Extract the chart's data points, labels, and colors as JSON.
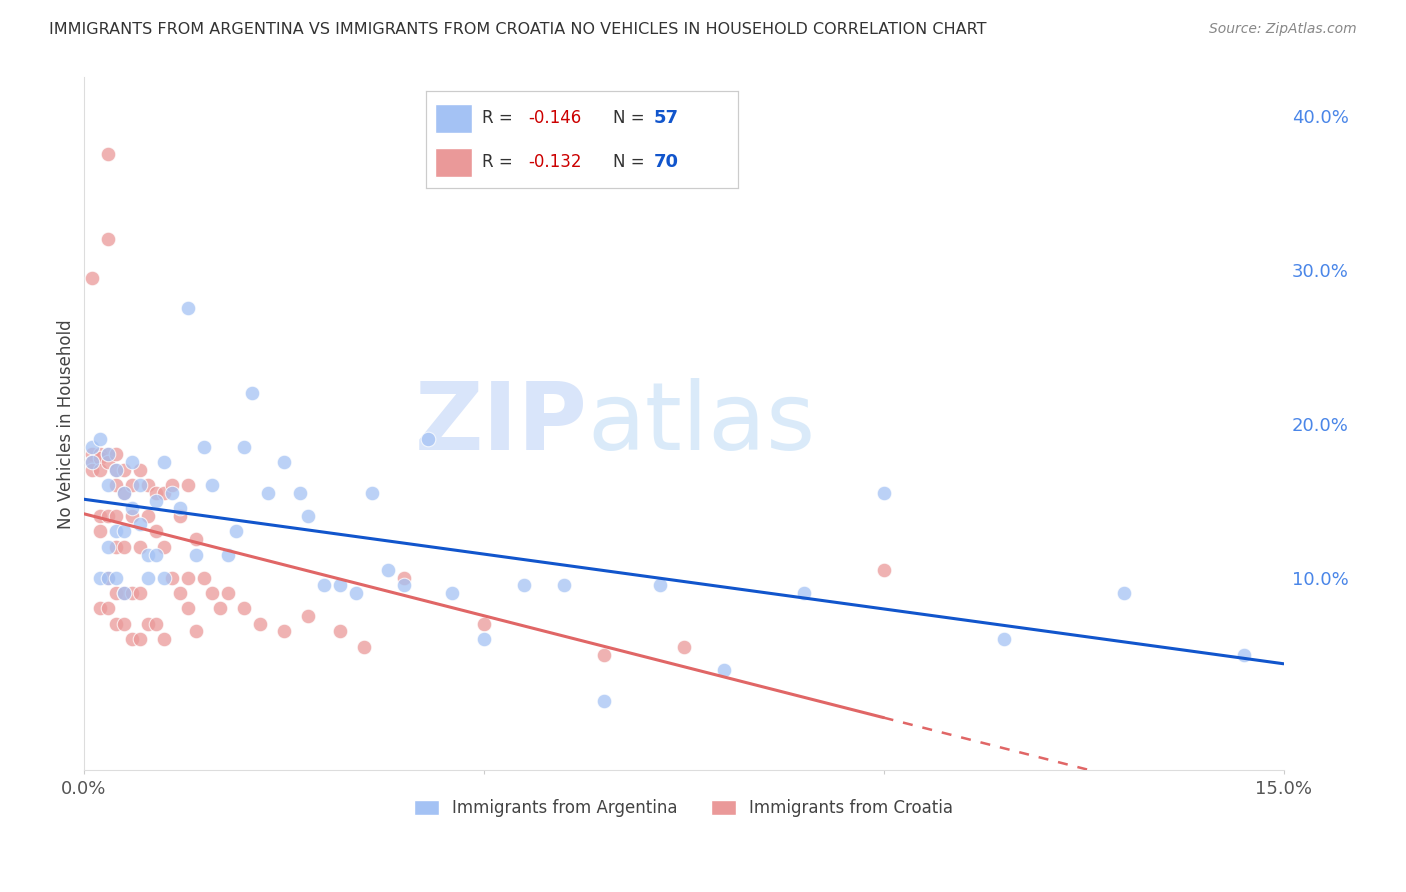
{
  "title": "IMMIGRANTS FROM ARGENTINA VS IMMIGRANTS FROM CROATIA NO VEHICLES IN HOUSEHOLD CORRELATION CHART",
  "source": "Source: ZipAtlas.com",
  "ylabel": "No Vehicles in Household",
  "xlim": [
    0.0,
    0.15
  ],
  "ylim": [
    -0.025,
    0.425
  ],
  "right_yticks": [
    0.0,
    0.1,
    0.2,
    0.3,
    0.4
  ],
  "right_yticklabels": [
    "",
    "10.0%",
    "20.0%",
    "30.0%",
    "40.0%"
  ],
  "argentina_color": "#a4c2f4",
  "croatia_color": "#ea9999",
  "argentina_line_color": "#1155cc",
  "croatia_line_color": "#e06666",
  "argentina_R": -0.146,
  "argentina_N": 57,
  "croatia_R": -0.132,
  "croatia_N": 70,
  "legend_label_argentina": "Immigrants from Argentina",
  "legend_label_croatia": "Immigrants from Croatia",
  "watermark_zip": "ZIP",
  "watermark_atlas": "atlas",
  "grid_color": "#cccccc",
  "title_color": "#333333",
  "axis_label_color": "#444444",
  "right_axis_color": "#4a86e8",
  "background_color": "#ffffff",
  "argentina_x": [
    0.001,
    0.001,
    0.002,
    0.002,
    0.003,
    0.003,
    0.003,
    0.003,
    0.004,
    0.004,
    0.004,
    0.005,
    0.005,
    0.005,
    0.006,
    0.006,
    0.007,
    0.007,
    0.008,
    0.008,
    0.009,
    0.009,
    0.01,
    0.01,
    0.011,
    0.012,
    0.013,
    0.014,
    0.015,
    0.016,
    0.018,
    0.019,
    0.02,
    0.021,
    0.023,
    0.025,
    0.027,
    0.028,
    0.03,
    0.032,
    0.034,
    0.036,
    0.038,
    0.04,
    0.043,
    0.046,
    0.05,
    0.055,
    0.06,
    0.065,
    0.072,
    0.08,
    0.09,
    0.1,
    0.115,
    0.13,
    0.145
  ],
  "argentina_y": [
    0.185,
    0.175,
    0.19,
    0.1,
    0.18,
    0.16,
    0.12,
    0.1,
    0.17,
    0.13,
    0.1,
    0.155,
    0.13,
    0.09,
    0.175,
    0.145,
    0.16,
    0.135,
    0.115,
    0.1,
    0.15,
    0.115,
    0.175,
    0.1,
    0.155,
    0.145,
    0.275,
    0.115,
    0.185,
    0.16,
    0.115,
    0.13,
    0.185,
    0.22,
    0.155,
    0.175,
    0.155,
    0.14,
    0.095,
    0.095,
    0.09,
    0.155,
    0.105,
    0.095,
    0.19,
    0.09,
    0.06,
    0.095,
    0.095,
    0.02,
    0.095,
    0.04,
    0.09,
    0.155,
    0.06,
    0.09,
    0.05
  ],
  "croatia_x": [
    0.001,
    0.001,
    0.001,
    0.001,
    0.002,
    0.002,
    0.002,
    0.002,
    0.002,
    0.002,
    0.003,
    0.003,
    0.003,
    0.003,
    0.003,
    0.003,
    0.003,
    0.004,
    0.004,
    0.004,
    0.004,
    0.004,
    0.004,
    0.004,
    0.005,
    0.005,
    0.005,
    0.005,
    0.005,
    0.006,
    0.006,
    0.006,
    0.006,
    0.007,
    0.007,
    0.007,
    0.007,
    0.008,
    0.008,
    0.008,
    0.009,
    0.009,
    0.009,
    0.01,
    0.01,
    0.01,
    0.011,
    0.011,
    0.012,
    0.012,
    0.013,
    0.013,
    0.013,
    0.014,
    0.014,
    0.015,
    0.016,
    0.017,
    0.018,
    0.02,
    0.022,
    0.025,
    0.028,
    0.032,
    0.035,
    0.04,
    0.05,
    0.065,
    0.075,
    0.1
  ],
  "croatia_y": [
    0.295,
    0.18,
    0.175,
    0.17,
    0.18,
    0.178,
    0.17,
    0.14,
    0.13,
    0.08,
    0.375,
    0.32,
    0.18,
    0.175,
    0.14,
    0.1,
    0.08,
    0.18,
    0.17,
    0.16,
    0.14,
    0.12,
    0.09,
    0.07,
    0.17,
    0.155,
    0.12,
    0.09,
    0.07,
    0.16,
    0.14,
    0.09,
    0.06,
    0.17,
    0.12,
    0.09,
    0.06,
    0.16,
    0.14,
    0.07,
    0.155,
    0.13,
    0.07,
    0.155,
    0.12,
    0.06,
    0.16,
    0.1,
    0.14,
    0.09,
    0.16,
    0.1,
    0.08,
    0.125,
    0.065,
    0.1,
    0.09,
    0.08,
    0.09,
    0.08,
    0.07,
    0.065,
    0.075,
    0.065,
    0.055,
    0.1,
    0.07,
    0.05,
    0.055,
    0.105
  ]
}
